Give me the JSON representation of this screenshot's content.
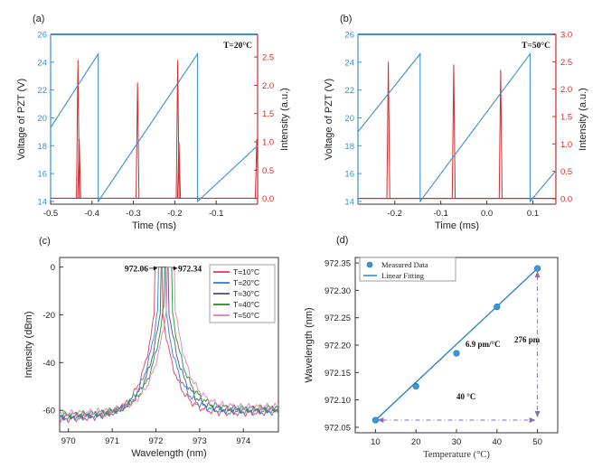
{
  "chart_data": [
    {
      "panel_label": "(a)",
      "type": "line",
      "annotation": "T=20°C",
      "xlabel": "Time (ms)",
      "ylabel": "Voltage of PZT  (V)",
      "ylabel_right": "Intensity (a.u.)",
      "xlim": [
        -0.5,
        0.0
      ],
      "ylim": [
        13.8,
        26.0
      ],
      "ylim_right": [
        -0.1,
        2.9
      ],
      "x_ticks": [
        -0.5,
        -0.4,
        -0.3,
        -0.2,
        -0.1
      ],
      "x_tick_labels": [
        "-0.5",
        "-0.4",
        "-0.3",
        "-0.2",
        "-0.1"
      ],
      "y_ticks": [
        14,
        16,
        18,
        20,
        22,
        24,
        26
      ],
      "y_tick_labels": [
        "14",
        "16",
        "18",
        "20",
        "22",
        "24",
        "26"
      ],
      "y_right_ticks": [
        0.0,
        0.5,
        1.0,
        1.5,
        2.0,
        2.5
      ],
      "y_right_tick_labels": [
        "0.0",
        "0.5",
        "1.0",
        "1.5",
        "2.0",
        "2.5"
      ],
      "colors": {
        "voltage": "#3c8fd0",
        "intensity": "#d42a2a"
      },
      "series": [
        {
          "axis": "left",
          "x": [
            -0.5,
            -0.385,
            -0.385,
            -0.145,
            -0.145,
            0.0
          ],
          "values": [
            19.3,
            24.6,
            14.0,
            24.6,
            14.0,
            18.0
          ]
        },
        {
          "axis": "right",
          "peaks": [
            {
              "x": -0.434,
              "values": [
                2.45,
                1.05
              ]
            },
            {
              "x": -0.29,
              "values": [
                2.05
              ]
            },
            {
              "x": -0.193,
              "values": [
                2.45,
                1.0
              ]
            },
            {
              "x": -0.002,
              "values": [
                1.05
              ]
            }
          ]
        }
      ]
    },
    {
      "panel_label": "(b)",
      "type": "line",
      "annotation": "T=50°C",
      "xlabel": "Time (ms)",
      "ylabel": "Voltage of PZT  (V)",
      "ylabel_right": "Intensity (a.u.)",
      "xlim": [
        -0.28,
        0.15
      ],
      "ylim": [
        13.8,
        26.0
      ],
      "ylim_right": [
        -0.1,
        3.0
      ],
      "x_ticks": [
        -0.2,
        -0.1,
        0.0,
        0.1
      ],
      "x_tick_labels": [
        "-0.2",
        "-0.1",
        "0.0",
        "0.1"
      ],
      "y_ticks": [
        14,
        16,
        18,
        20,
        22,
        24,
        26
      ],
      "y_tick_labels": [
        "14",
        "16",
        "18",
        "20",
        "22",
        "24",
        "26"
      ],
      "y_right_ticks": [
        0.0,
        0.5,
        1.0,
        1.5,
        2.0,
        2.5,
        3.0
      ],
      "y_right_tick_labels": [
        "0.0",
        "0.5",
        "1.0",
        "1.5",
        "2.0",
        "2.5",
        "3.0"
      ],
      "colors": {
        "voltage": "#3c8fd0",
        "intensity": "#d42a2a"
      },
      "series": [
        {
          "axis": "left",
          "x": [
            -0.28,
            -0.145,
            -0.145,
            0.094,
            0.094,
            0.15
          ],
          "values": [
            19.0,
            24.6,
            14.0,
            24.6,
            14.0,
            16.2
          ]
        },
        {
          "axis": "right",
          "peaks": [
            {
              "x": -0.214,
              "values": [
                2.5
              ]
            },
            {
              "x": -0.072,
              "values": [
                2.45
              ]
            },
            {
              "x": 0.03,
              "values": [
                2.35
              ]
            }
          ]
        }
      ]
    },
    {
      "panel_label": "(c)",
      "type": "line",
      "xlabel": "Wavelength (nm)",
      "ylabel": "Intensity (dBm)",
      "xlim": [
        969.8,
        974.8
      ],
      "ylim": [
        -69,
        4
      ],
      "x_ticks": [
        970,
        971,
        972,
        973,
        974
      ],
      "x_tick_labels": [
        "970",
        "971",
        "972",
        "973",
        "974"
      ],
      "y_ticks": [
        0,
        -20,
        -40,
        -60
      ],
      "y_tick_labels": [
        "0",
        "-20",
        "-40",
        "-60"
      ],
      "annotations": [
        "972.06",
        "972.34"
      ],
      "series": [
        {
          "name": "T=10°C",
          "color": "#e0526a",
          "peak": 972.06
        },
        {
          "name": "T=20°C",
          "color": "#3c8fd0",
          "peak": 972.13
        },
        {
          "name": "T=30°C",
          "color": "#6a5a9a",
          "peak": 972.2
        },
        {
          "name": "T=40°C",
          "color": "#2e9e3a",
          "peak": 972.27
        },
        {
          "name": "T=50°C",
          "color": "#e88ac0",
          "peak": 972.34
        }
      ]
    },
    {
      "panel_label": "(d)",
      "type": "scatter",
      "xlabel": "Temperature (°C)",
      "ylabel": "Wavelength (nm)",
      "xlim": [
        5,
        55
      ],
      "ylim": [
        972.04,
        972.36
      ],
      "x_ticks": [
        10,
        20,
        30,
        40,
        50
      ],
      "x_tick_labels": [
        "10",
        "20",
        "30",
        "40",
        "50"
      ],
      "y_ticks": [
        972.05,
        972.1,
        972.15,
        972.2,
        972.25,
        972.3,
        972.35
      ],
      "y_tick_labels": [
        "972.05",
        "972.10",
        "972.15",
        "972.20",
        "972.25",
        "972.30",
        "972.35"
      ],
      "legend": [
        "Measured Data",
        "Linear Fitting"
      ],
      "x": [
        10,
        20,
        30,
        40,
        50
      ],
      "values": [
        972.063,
        972.125,
        972.185,
        972.27,
        972.34
      ],
      "fit": {
        "x": [
          10,
          50
        ],
        "values": [
          972.063,
          972.34
        ]
      },
      "annotations": {
        "slope": "6.9 pm/°C",
        "dy": "276 pm",
        "dx": "40 °C"
      }
    }
  ]
}
